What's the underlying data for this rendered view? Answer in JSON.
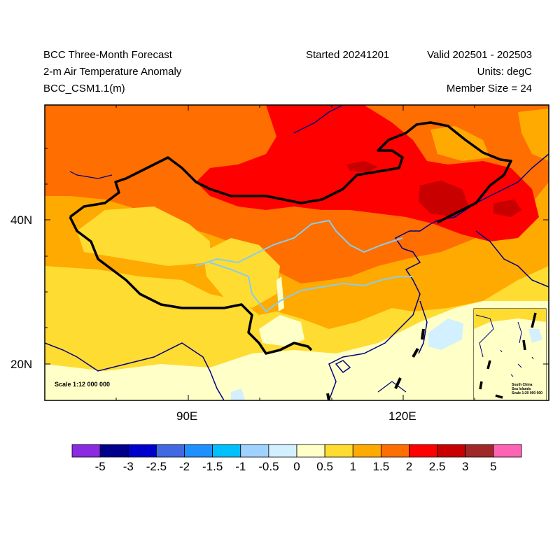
{
  "header": {
    "title": "BCC Three-Month Forecast",
    "variable": "2-m Air Temperature Anomaly",
    "model": "BCC_CSM1.1(m)",
    "started": "Started 20241201",
    "valid": "Valid 202501 - 202503",
    "units": "Units: degC",
    "member_size": "Member Size = 24"
  },
  "axes": {
    "lat_labels": [
      "40N",
      "20N"
    ],
    "lon_labels": [
      "90E",
      "120E"
    ]
  },
  "map": {
    "scale_main": "Scale 1:12 000 000",
    "inset_title_line1": "South China",
    "inset_title_line2": "Sea Islands",
    "inset_scale": "Scale 1:20 000 000"
  },
  "colorbar": {
    "labels": [
      "-5",
      "-3",
      "-2.5",
      "-2",
      "-1.5",
      "-1",
      "-0.5",
      "0",
      "0.5",
      "1",
      "1.5",
      "2",
      "2.5",
      "3",
      "5"
    ],
    "colors": [
      "#8a2be2",
      "#00008b",
      "#0000cd",
      "#4169e1",
      "#1e90ff",
      "#00bfff",
      "#a0d2ff",
      "#d2f0ff",
      "#ffffc8",
      "#ffdc32",
      "#ffaa00",
      "#ff6e00",
      "#ff0000",
      "#c80000",
      "#a02828",
      "#ff64b4"
    ]
  },
  "colors": {
    "coast": "#000080",
    "border": "#000000",
    "river": "#87ceeb"
  }
}
